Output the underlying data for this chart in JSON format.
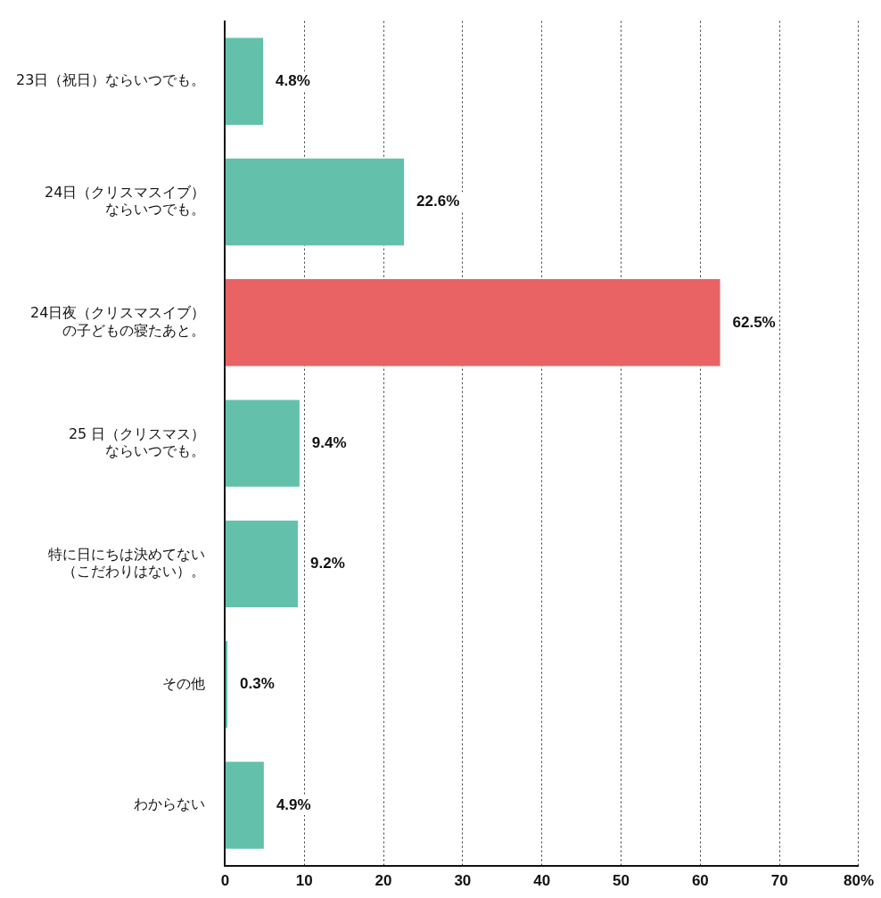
{
  "chart_data": {
    "type": "bar",
    "orientation": "horizontal",
    "categories": [
      "23日（祝日）ならいつでも。",
      "24日（クリスマスイブ）ならいつでも。",
      "24日夜（クリスマスイブ）の子どもの寝たあと。",
      "25 日（クリスマス）ならいつでも。",
      "特に日にちは決めてない（こだわりはない）。",
      "その他",
      "わからない"
    ],
    "values": [
      4.8,
      22.6,
      62.5,
      9.4,
      9.2,
      0.3,
      4.9
    ],
    "colors": [
      "#63c1ab",
      "#63c1ab",
      "#e96264",
      "#63c1ab",
      "#63c1ab",
      "#63c1ab",
      "#63c1ab"
    ],
    "value_labels": [
      "4.8%",
      "22.6%",
      "62.5%",
      "9.4%",
      "9.2%",
      "0.3%",
      "4.9%"
    ],
    "xlim": [
      0,
      80
    ],
    "xticks": [
      0,
      10,
      20,
      30,
      40,
      50,
      60,
      70,
      {
        "value": 80,
        "label": "80%"
      }
    ],
    "grid": "x",
    "legend": false
  }
}
